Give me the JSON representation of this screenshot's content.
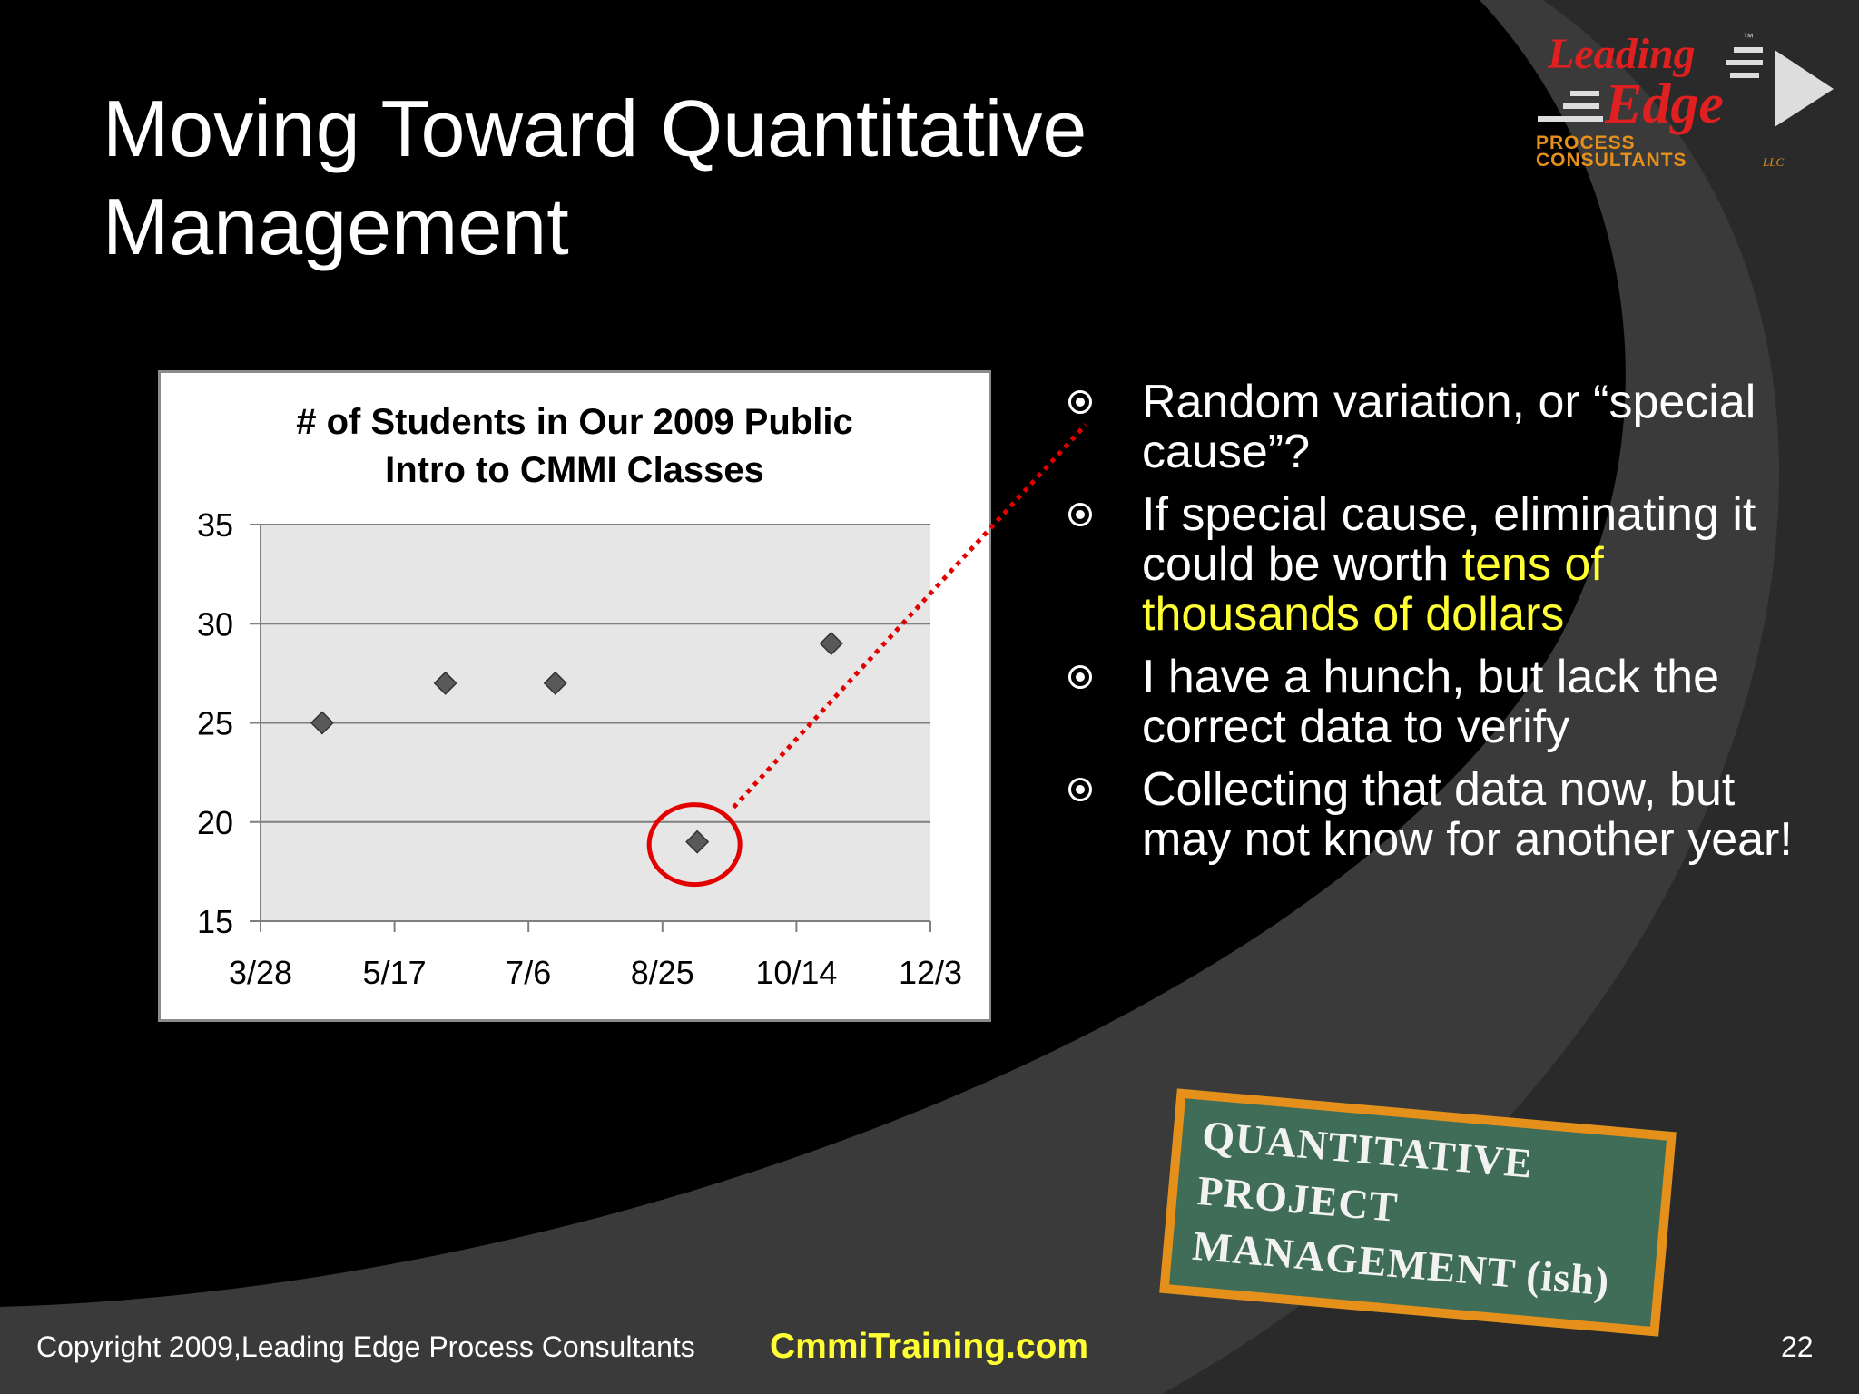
{
  "slide": {
    "title_lines": [
      "Moving Toward Quantitative",
      "Management"
    ],
    "page_number": "22"
  },
  "logo": {
    "line1": "Leading",
    "line2": "Edge",
    "line3": "PROCESS",
    "line4": "CONSULTANTS",
    "suffix": "LLC",
    "tm": "™"
  },
  "chart_data": {
    "type": "scatter",
    "title_lines": [
      "# of Students in Our 2009 Public",
      "Intro to CMMI Classes"
    ],
    "title": "# of Students in Our 2009 Public Intro to CMMI Classes",
    "x_ticks": [
      "3/28",
      "5/17",
      "7/6",
      "8/25",
      "10/14",
      "12/3"
    ],
    "y_ticks": [
      "35",
      "30",
      "25",
      "20",
      "15"
    ],
    "ylim": [
      15,
      35
    ],
    "xlim": [
      "2009-03-28",
      "2009-12-03"
    ],
    "points": [
      {
        "x": "2009-04-20",
        "y": 25
      },
      {
        "x": "2009-06-05",
        "y": 27
      },
      {
        "x": "2009-07-16",
        "y": 27
      },
      {
        "x": "2009-09-07",
        "y": 19
      },
      {
        "x": "2009-10-27",
        "y": 29
      }
    ],
    "highlighted_point": {
      "x": "2009-09-07",
      "y": 19
    },
    "grid": true,
    "legend": "none",
    "plot_color": "#e6e6e6",
    "marker_color": "#595959"
  },
  "bullets": [
    {
      "parts": [
        {
          "text": "Random variation, or “special cause”?",
          "highlight": false
        }
      ]
    },
    {
      "parts": [
        {
          "text": "If special cause, eliminating it could be worth ",
          "highlight": false
        },
        {
          "text": "tens of thousands of dollars",
          "highlight": true
        }
      ]
    },
    {
      "parts": [
        {
          "text": "I have a hunch, but lack the correct data to verify",
          "highlight": false
        }
      ]
    },
    {
      "parts": [
        {
          "text": "Collecting that data now, but may not know for another year!",
          "highlight": false
        }
      ]
    }
  ],
  "stamp": {
    "lines": [
      "QUANTITATIVE",
      "PROJECT",
      "MANAGEMENT (ish)"
    ]
  },
  "footer": {
    "copyright": "Copyright 2009,Leading Edge Process Consultants",
    "site": "CmmiTraining.com"
  },
  "colors": {
    "background": "#000000",
    "highlight": "#ffff33",
    "callout": "#e30000",
    "stamp_bg": "#3f6d58",
    "stamp_border": "#e6901c"
  }
}
